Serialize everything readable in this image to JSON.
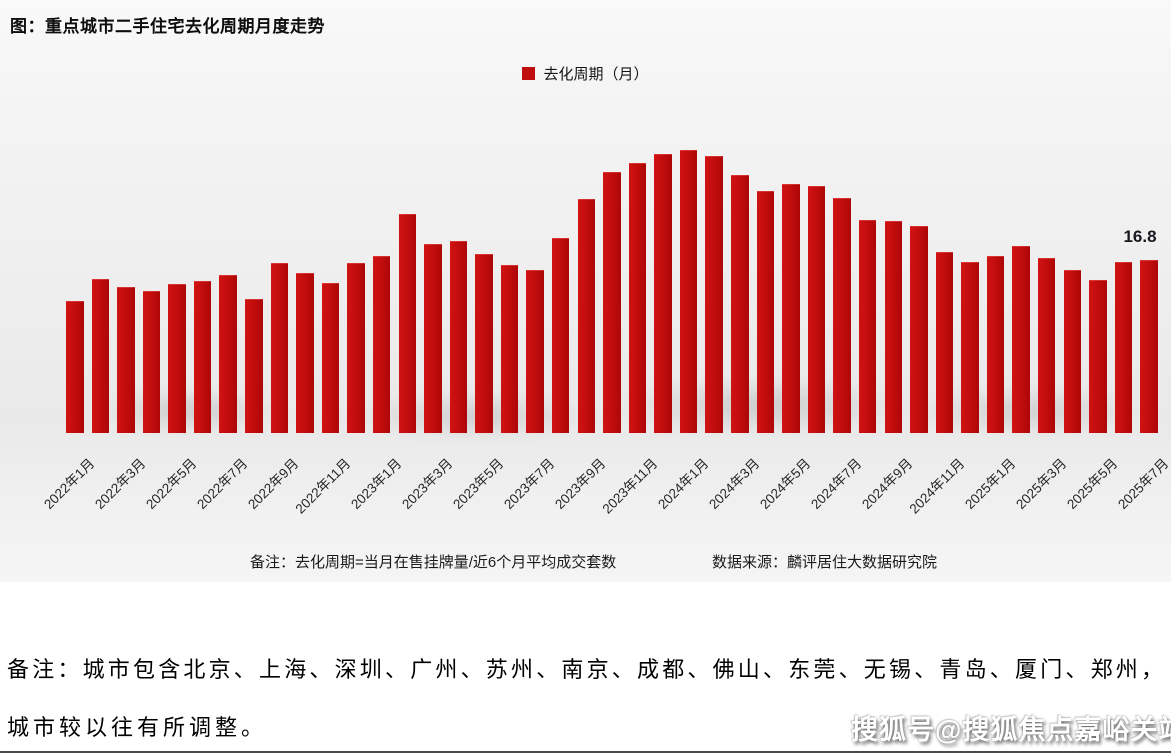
{
  "header": {
    "title": "图：重点城市二手住宅去化周期月度走势"
  },
  "legend": {
    "label": "去化周期（月）",
    "marker_color": "#c00d0d"
  },
  "chart_data": {
    "type": "bar",
    "title": "图：重点城市二手住宅去化周期月度走势",
    "series_name": "去化周期（月）",
    "legend_position": "top-center",
    "grid": false,
    "ylim": [
      0,
      30
    ],
    "bar_color": "#c00d0d",
    "categories": [
      "2022年1月",
      "2022年2月",
      "2022年3月",
      "2022年4月",
      "2022年5月",
      "2022年6月",
      "2022年7月",
      "2022年8月",
      "2022年9月",
      "2022年10月",
      "2022年11月",
      "2022年12月",
      "2023年1月",
      "2023年2月",
      "2023年3月",
      "2023年4月",
      "2023年5月",
      "2023年6月",
      "2023年7月",
      "2023年8月",
      "2023年9月",
      "2023年10月",
      "2023年11月",
      "2023年12月",
      "2024年1月",
      "2024年2月",
      "2024年3月",
      "2024年4月",
      "2024年5月",
      "2024年6月",
      "2024年7月",
      "2024年8月",
      "2024年9月",
      "2024年10月",
      "2024年11月",
      "2024年12月",
      "2025年1月",
      "2025年2月",
      "2025年3月",
      "2025年4月",
      "2025年5月",
      "2025年6月",
      "2025年7月"
    ],
    "values": [
      12.8,
      15.0,
      14.2,
      13.8,
      14.5,
      14.8,
      15.3,
      13.0,
      16.5,
      15.5,
      14.6,
      16.5,
      17.2,
      21.3,
      18.4,
      18.6,
      17.4,
      16.3,
      15.8,
      18.9,
      22.7,
      25.3,
      26.2,
      27.1,
      27.5,
      26.9,
      25.1,
      23.5,
      24.2,
      24.0,
      22.8,
      20.7,
      20.6,
      20.1,
      17.6,
      16.6,
      17.2,
      18.2,
      17.0,
      15.8,
      14.9,
      16.6,
      16.8
    ],
    "x_tick_labels": [
      "2022年1月",
      "2022年3月",
      "2022年5月",
      "2022年7月",
      "2022年9月",
      "2022年11月",
      "2023年1月",
      "2023年3月",
      "2023年5月",
      "2023年7月",
      "2023年9月",
      "2023年11月",
      "2024年1月",
      "2024年3月",
      "2024年5月",
      "2024年7月",
      "2024年9月",
      "2024年11月",
      "2025年1月",
      "2025年3月",
      "2025年5月",
      "2025年7月"
    ],
    "x_tick_every": 2,
    "data_labels": [
      {
        "category": "2025年7月",
        "value": 16.8,
        "text": "16.8"
      }
    ]
  },
  "footnote": {
    "left": "备注：去化周期=当月在售挂牌量/近6个月平均成交套数",
    "right": "数据来源：麟评居住大数据研究院"
  },
  "notes": {
    "line1": "备注：城市包含北京、上海、深圳、广州、苏州、南京、成都、佛山、东莞、无锡、青岛、厦门、郑州，",
    "line2": "城市较以往有所调整。"
  },
  "watermark": {
    "text": "搜狐号@搜狐焦点嘉峪关站"
  }
}
